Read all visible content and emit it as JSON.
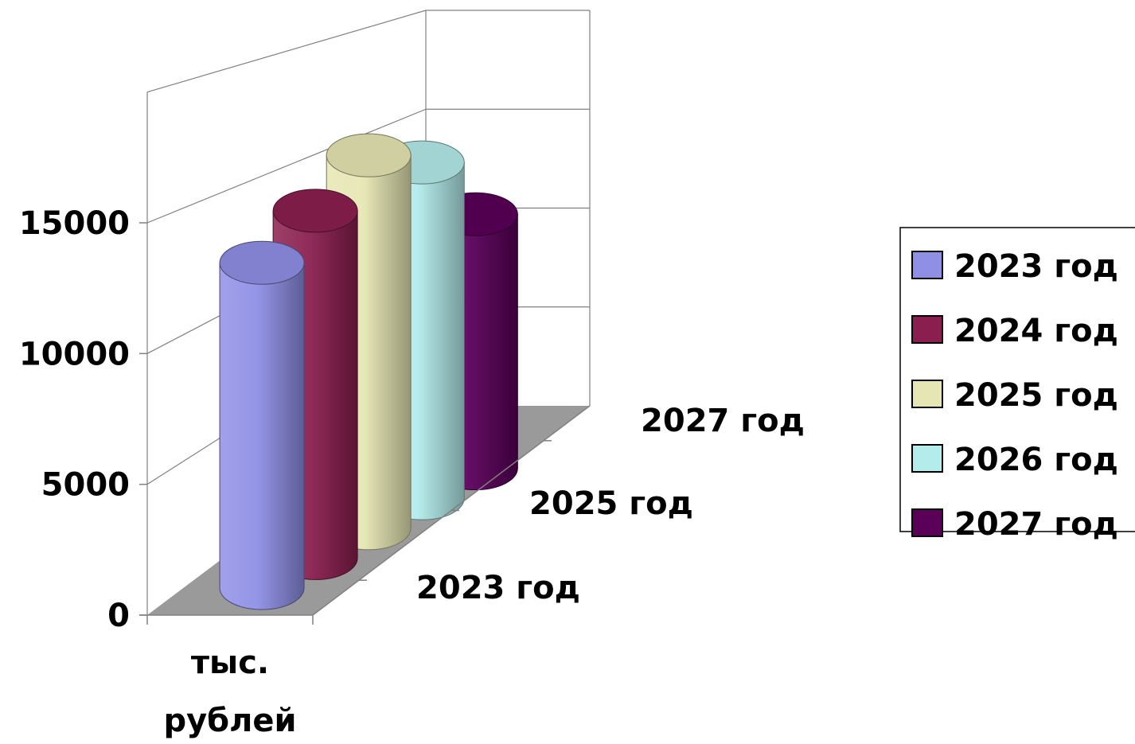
{
  "chart_data": {
    "type": "bar",
    "subtype": "3d-cylinder",
    "categories": [
      "тыс. рублей"
    ],
    "category_label_lines": [
      "тыс.",
      "рублей"
    ],
    "series": [
      {
        "name": "2023 год",
        "values": [
          12500
        ],
        "color": "#8f8fe6"
      },
      {
        "name": "2024 год",
        "values": [
          14000
        ],
        "color": "#8a1f4f"
      },
      {
        "name": "2025 год",
        "values": [
          15800
        ],
        "color": "#e6e6b4"
      },
      {
        "name": "2026 год",
        "values": [
          15000
        ],
        "color": "#b4ecec"
      },
      {
        "name": "2027 год",
        "values": [
          12000
        ],
        "color": "#5a0059"
      }
    ],
    "depth_labels": [
      "2023 год",
      "2025 год",
      "2027 год"
    ],
    "yticks": [
      0,
      5000,
      10000,
      15000
    ],
    "ylim": [
      0,
      20000
    ],
    "grid": true,
    "legend_position": "right",
    "floor_color": "#9a9a9a"
  }
}
